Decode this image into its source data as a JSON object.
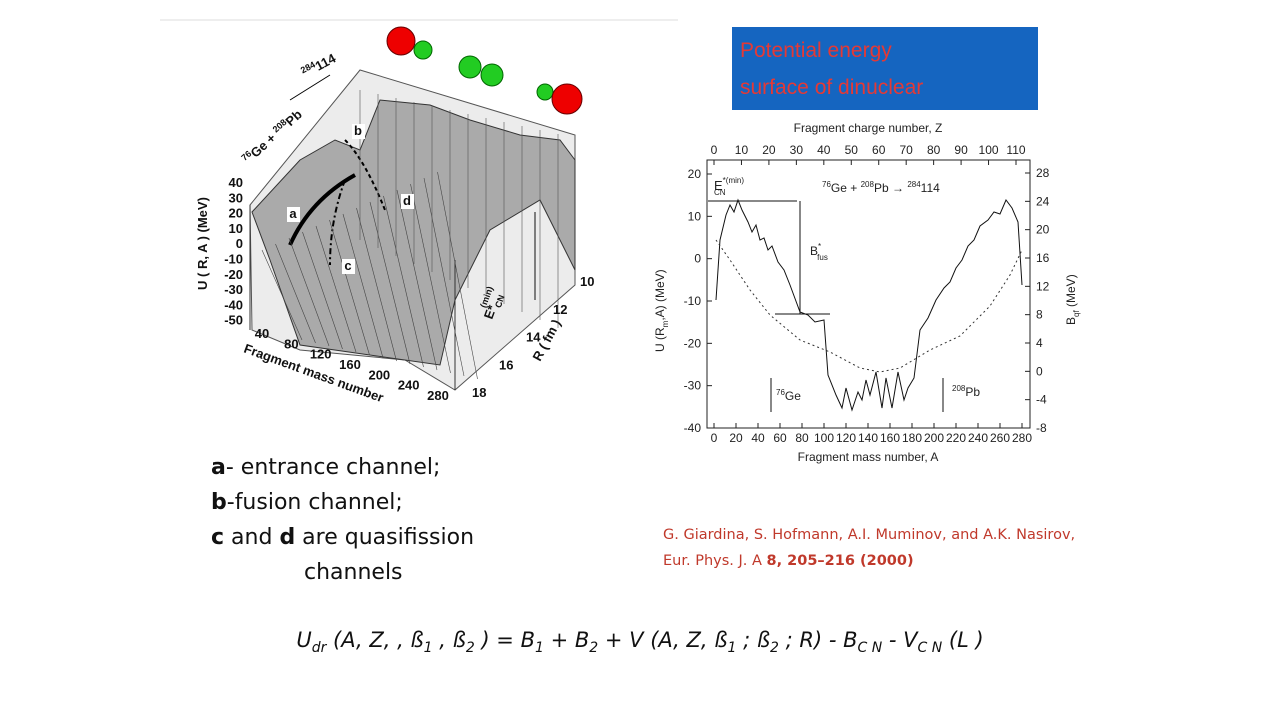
{
  "title_box": [
    "Potential energy",
    "surface of dinuclear"
  ],
  "surface_plot": {
    "reaction": [
      "76",
      "Ge + ",
      "208",
      "Pb"
    ],
    "product": [
      "284",
      "114"
    ],
    "y_label": "U ( R, A )  (MeV)",
    "y_ticks": [
      40,
      30,
      20,
      10,
      0,
      -10,
      -20,
      -30,
      -40,
      -50
    ],
    "x_label": "Fragment mass number",
    "x_ticks": [
      40,
      80,
      120,
      160,
      200,
      240,
      280
    ],
    "r_label": "R ( fm )",
    "r_ticks": [
      10,
      12,
      14,
      16,
      18
    ],
    "e_label": [
      "E*",
      "CN",
      "(min)"
    ],
    "channels": [
      "a",
      "b",
      "c",
      "d"
    ]
  },
  "energy_plot": {
    "top_label": "Fragment charge number, Z",
    "top_ticks": [
      0,
      10,
      20,
      30,
      40,
      50,
      60,
      70,
      80,
      90,
      100,
      110
    ],
    "bottom_label": "Fragment mass number, A",
    "bottom_ticks": [
      0,
      20,
      40,
      60,
      80,
      100,
      120,
      140,
      160,
      180,
      200,
      220,
      240,
      260,
      280
    ],
    "left_label": [
      "U (R",
      "m",
      ",A) (MeV)"
    ],
    "left_ticks": [
      20,
      10,
      0,
      -10,
      -20,
      -30,
      -40
    ],
    "right_label": [
      "B",
      "qf",
      " (MeV)"
    ],
    "right_ticks": [
      28,
      24,
      20,
      16,
      12,
      8,
      4,
      0,
      -4,
      -8
    ],
    "ecn": [
      "E",
      "*(min)",
      "CN"
    ],
    "reaction": [
      "76",
      "Ge + ",
      "208",
      "Pb  →  ",
      "284",
      "114"
    ],
    "bfus": [
      "B",
      "*",
      "fus"
    ],
    "ge": [
      "76",
      "Ge"
    ],
    "pb": [
      "208",
      "Pb"
    ]
  },
  "legend": [
    [
      "a",
      "- entrance channel;"
    ],
    [
      "b",
      "-fusion channel;"
    ],
    [
      "c",
      " and ",
      "d",
      " are quasifission"
    ],
    [
      "channels"
    ]
  ],
  "citation": [
    "G. Giardina, S. Hofmann, A.I. Muminov, and A.K. Nasirov,",
    "Eur. Phys. J. A ",
    "8, 205–216 (2000)"
  ],
  "formula": [
    "U",
    "dr",
    " (A, Z, , ß",
    "1",
    " , ß",
    "2",
    " ) = B",
    "1",
    " + B",
    "2",
    " + V (A, Z, ß",
    "1",
    " ; ß",
    "2",
    " ; R) - B",
    "C N",
    " - V",
    "C N",
    " (L )"
  ]
}
